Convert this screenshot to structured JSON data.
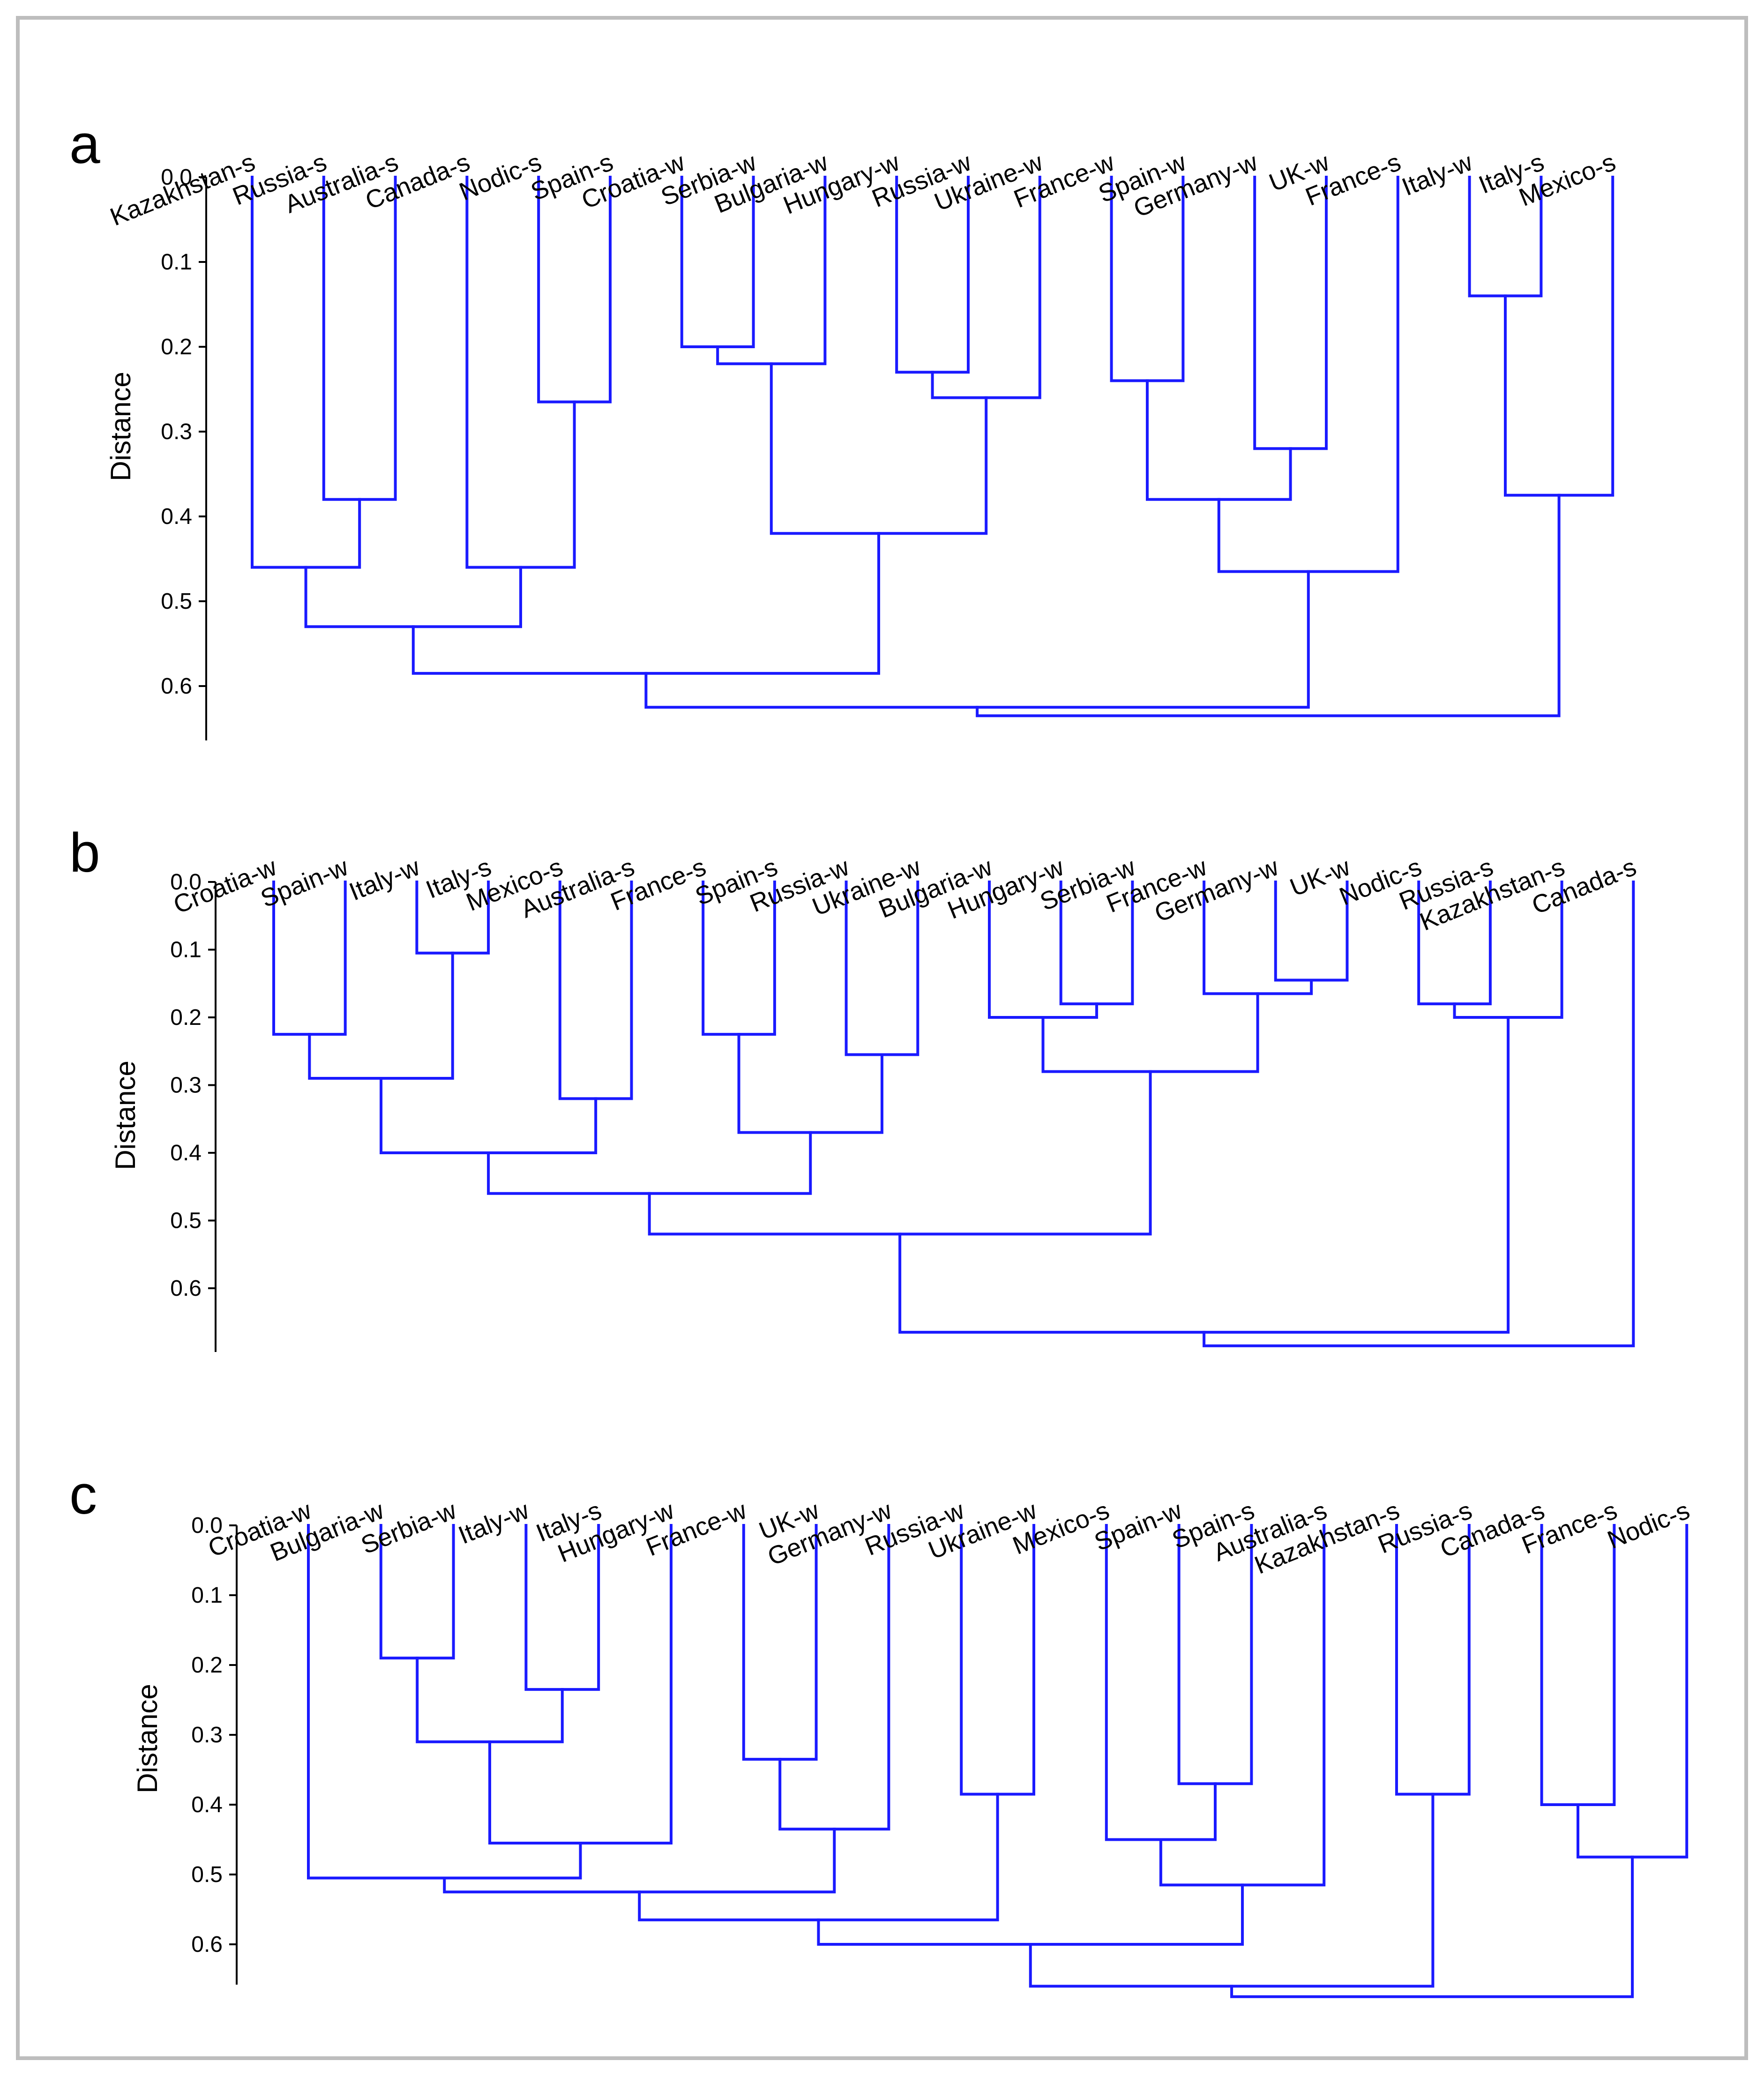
{
  "colors": {
    "branch": "#1a1aff",
    "axis": "#000000",
    "frame": "#bdbdbd"
  },
  "chart_data": [
    {
      "type": "dendrogram",
      "panel": "a",
      "ylabel": "Distance",
      "yticks": [
        "0.0",
        "0.1",
        "0.2",
        "0.3",
        "0.4",
        "0.5",
        "0.6"
      ],
      "ylim": [
        0,
        0.66
      ],
      "leaves": [
        "Kazakhstan-s",
        "Russia-s",
        "Australia-s",
        "Canada-s",
        "Nodic-s",
        "Spain-s",
        "Croatia-w",
        "Serbia-w",
        "Bulgaria-w",
        "Hungary-w",
        "Russia-w",
        "Ukraine-w",
        "France-w",
        "Spain-w",
        "Germany-w",
        "UK-w",
        "France-s",
        "Italy-w",
        "Italy-s",
        "Mexico-s"
      ],
      "merges": [
        {
          "id": "a1",
          "children": [
            "Italy-w",
            "Italy-s"
          ],
          "height": 0.14
        },
        {
          "id": "a2",
          "children": [
            "Croatia-w",
            "Serbia-w"
          ],
          "height": 0.2
        },
        {
          "id": "a3",
          "children": [
            "a2",
            "Bulgaria-w"
          ],
          "height": 0.22
        },
        {
          "id": "a4",
          "children": [
            "Hungary-w",
            "Russia-w"
          ],
          "height": 0.23
        },
        {
          "id": "a5",
          "children": [
            "France-w",
            "Spain-w"
          ],
          "height": 0.24
        },
        {
          "id": "a6",
          "children": [
            "a4",
            "Ukraine-w"
          ],
          "height": 0.26
        },
        {
          "id": "a7",
          "children": [
            "Nodic-s",
            "Spain-s"
          ],
          "height": 0.265
        },
        {
          "id": "a8",
          "children": [
            "Germany-w",
            "UK-w"
          ],
          "height": 0.32
        },
        {
          "id": "a9",
          "children": [
            "a1",
            "Mexico-s"
          ],
          "height": 0.375
        },
        {
          "id": "a10",
          "children": [
            "Russia-s",
            "Australia-s"
          ],
          "height": 0.38
        },
        {
          "id": "a11",
          "children": [
            "a5",
            "a8"
          ],
          "height": 0.38
        },
        {
          "id": "a12",
          "children": [
            "a3",
            "a6"
          ],
          "height": 0.42
        },
        {
          "id": "a13",
          "children": [
            "Kazakhstan-s",
            "a10"
          ],
          "height": 0.46
        },
        {
          "id": "a14",
          "children": [
            "Canada-s",
            "a7"
          ],
          "height": 0.46
        },
        {
          "id": "a15",
          "children": [
            "a11",
            "France-s"
          ],
          "height": 0.465
        },
        {
          "id": "a16",
          "children": [
            "a13",
            "a14"
          ],
          "height": 0.53
        },
        {
          "id": "a17",
          "children": [
            "a16",
            "a12"
          ],
          "height": 0.585
        },
        {
          "id": "a18",
          "children": [
            "a17",
            "a15"
          ],
          "height": 0.625
        },
        {
          "id": "a19",
          "children": [
            "a18",
            "a9"
          ],
          "height": 0.635
        }
      ]
    },
    {
      "type": "dendrogram",
      "panel": "b",
      "ylabel": "Distance",
      "yticks": [
        "0.0",
        "0.1",
        "0.2",
        "0.3",
        "0.4",
        "0.5",
        "0.6"
      ],
      "ylim": [
        0,
        0.69
      ],
      "leaves": [
        "Croatia-w",
        "Spain-w",
        "Italy-w",
        "Italy-s",
        "Mexico-s",
        "Australia-s",
        "France-s",
        "Spain-s",
        "Russia-w",
        "Ukraine-w",
        "Bulgaria-w",
        "Hungary-w",
        "Serbia-w",
        "France-w",
        "Germany-w",
        "UK-w",
        "Nodic-s",
        "Russia-s",
        "Kazakhstan-s",
        "Canada-s"
      ],
      "merges": [
        {
          "id": "b1",
          "children": [
            "Italy-w",
            "Italy-s"
          ],
          "height": 0.105
        },
        {
          "id": "b2",
          "children": [
            "Germany-w",
            "UK-w"
          ],
          "height": 0.145
        },
        {
          "id": "b3",
          "children": [
            "France-w",
            "b2"
          ],
          "height": 0.165
        },
        {
          "id": "b4",
          "children": [
            "Hungary-w",
            "Serbia-w"
          ],
          "height": 0.18
        },
        {
          "id": "b5",
          "children": [
            "Nodic-s",
            "Russia-s"
          ],
          "height": 0.18
        },
        {
          "id": "b6",
          "children": [
            "Bulgaria-w",
            "b4"
          ],
          "height": 0.2
        },
        {
          "id": "b7",
          "children": [
            "b5",
            "Kazakhstan-s"
          ],
          "height": 0.2
        },
        {
          "id": "b8",
          "children": [
            "Croatia-w",
            "Spain-w"
          ],
          "height": 0.225
        },
        {
          "id": "b9",
          "children": [
            "France-s",
            "Spain-s"
          ],
          "height": 0.225
        },
        {
          "id": "b10",
          "children": [
            "Russia-w",
            "Ukraine-w"
          ],
          "height": 0.255
        },
        {
          "id": "b11",
          "children": [
            "b6",
            "b3"
          ],
          "height": 0.28
        },
        {
          "id": "b12",
          "children": [
            "b8",
            "b1"
          ],
          "height": 0.29
        },
        {
          "id": "b13",
          "children": [
            "Mexico-s",
            "Australia-s"
          ],
          "height": 0.32
        },
        {
          "id": "b14",
          "children": [
            "b9",
            "b10"
          ],
          "height": 0.37
        },
        {
          "id": "b15",
          "children": [
            "b12",
            "b13"
          ],
          "height": 0.4
        },
        {
          "id": "b16",
          "children": [
            "b15",
            "b14"
          ],
          "height": 0.46
        },
        {
          "id": "b17",
          "children": [
            "b16",
            "b11"
          ],
          "height": 0.52
        },
        {
          "id": "b18",
          "children": [
            "b17",
            "b7"
          ],
          "height": 0.665
        },
        {
          "id": "b19",
          "children": [
            "b18",
            "Canada-s"
          ],
          "height": 0.685
        }
      ]
    },
    {
      "type": "dendrogram",
      "panel": "c",
      "ylabel": "Distance",
      "yticks": [
        "0.0",
        "0.1",
        "0.2",
        "0.3",
        "0.4",
        "0.5",
        "0.6"
      ],
      "ylim": [
        0,
        0.68
      ],
      "leaves": [
        "Croatia-w",
        "Bulgaria-w",
        "Serbia-w",
        "Italy-w",
        "Italy-s",
        "Hungary-w",
        "France-w",
        "UK-w",
        "Germany-w",
        "Russia-w",
        "Ukraine-w",
        "Mexico-s",
        "Spain-w",
        "Spain-s",
        "Australia-s",
        "Kazakhstan-s",
        "Russia-s",
        "Canada-s",
        "France-s",
        "Nodic-s"
      ],
      "merges": [
        {
          "id": "c1",
          "children": [
            "Bulgaria-w",
            "Serbia-w"
          ],
          "height": 0.19
        },
        {
          "id": "c2",
          "children": [
            "Italy-w",
            "Italy-s"
          ],
          "height": 0.235
        },
        {
          "id": "c3",
          "children": [
            "c1",
            "c2"
          ],
          "height": 0.31
        },
        {
          "id": "c4",
          "children": [
            "France-w",
            "UK-w"
          ],
          "height": 0.335
        },
        {
          "id": "c5",
          "children": [
            "Spain-w",
            "Spain-s"
          ],
          "height": 0.37
        },
        {
          "id": "c6",
          "children": [
            "Kazakhstan-s",
            "Russia-s"
          ],
          "height": 0.385
        },
        {
          "id": "c7",
          "children": [
            "Russia-w",
            "Ukraine-w"
          ],
          "height": 0.385
        },
        {
          "id": "c8",
          "children": [
            "Canada-s",
            "France-s"
          ],
          "height": 0.4
        },
        {
          "id": "c9",
          "children": [
            "c4",
            "Germany-w"
          ],
          "height": 0.435
        },
        {
          "id": "c10",
          "children": [
            "Mexico-s",
            "c5"
          ],
          "height": 0.45
        },
        {
          "id": "c11",
          "children": [
            "c3",
            "Hungary-w"
          ],
          "height": 0.455
        },
        {
          "id": "c12",
          "children": [
            "c8",
            "Nodic-s"
          ],
          "height": 0.475
        },
        {
          "id": "c13",
          "children": [
            "Croatia-w",
            "c11"
          ],
          "height": 0.505
        },
        {
          "id": "c14",
          "children": [
            "c10",
            "Australia-s"
          ],
          "height": 0.515
        },
        {
          "id": "c15",
          "children": [
            "c13",
            "c9"
          ],
          "height": 0.525
        },
        {
          "id": "c16",
          "children": [
            "c15",
            "c7"
          ],
          "height": 0.565
        },
        {
          "id": "c17",
          "children": [
            "c16",
            "c14"
          ],
          "height": 0.6
        },
        {
          "id": "c18",
          "children": [
            "c17",
            "c6"
          ],
          "height": 0.66
        },
        {
          "id": "c19",
          "children": [
            "c18",
            "c12"
          ],
          "height": 0.675
        }
      ]
    }
  ]
}
